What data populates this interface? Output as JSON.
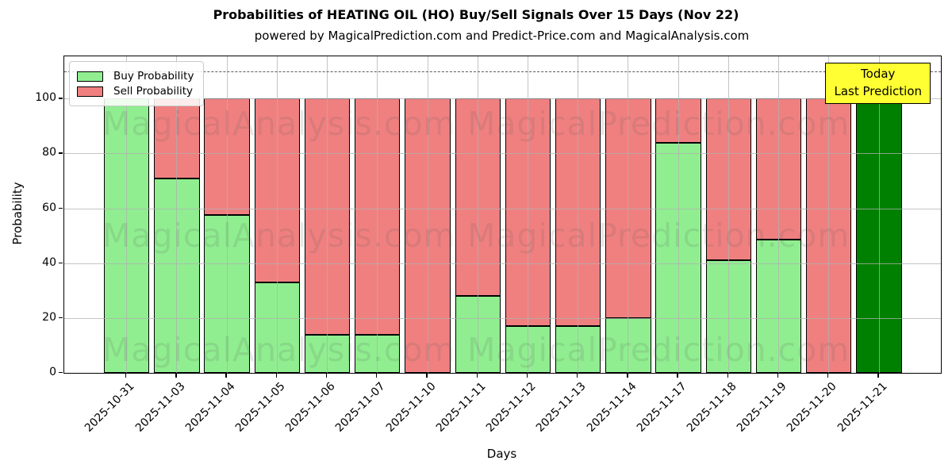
{
  "chart_data": {
    "type": "bar",
    "stacked": true,
    "title": "Probabilities of HEATING OIL (HO) Buy/Sell Signals Over 15 Days (Nov 22)",
    "subtitle": "powered by MagicalPrediction.com and Predict-Price.com and MagicalAnalysis.com",
    "xlabel": "Days",
    "ylabel": "Probability",
    "ylim": [
      0,
      115
    ],
    "yticks": [
      0,
      20,
      40,
      60,
      80,
      100
    ],
    "grid": true,
    "legend_position": "upper left",
    "dashed_line_y": 110,
    "categories": [
      "2025-10-31",
      "2025-11-03",
      "2025-11-04",
      "2025-11-05",
      "2025-11-06",
      "2025-11-07",
      "2025-11-10",
      "2025-11-11",
      "2025-11-12",
      "2025-11-13",
      "2025-11-14",
      "2025-11-17",
      "2025-11-18",
      "2025-11-19",
      "2025-11-20",
      "2025-11-21"
    ],
    "series": [
      {
        "name": "Buy Probability",
        "color": "#90ee90",
        "values": [
          100,
          71,
          57.5,
          33,
          14,
          14,
          0,
          28,
          17,
          17,
          20,
          84,
          41,
          48.5,
          0,
          100
        ]
      },
      {
        "name": "Sell Probability",
        "color": "#f08080",
        "values": [
          0,
          29,
          42.5,
          67,
          86,
          86,
          100,
          72,
          83,
          83,
          80,
          16,
          59,
          51.5,
          100,
          0
        ]
      }
    ],
    "bar_edge_color": "#000000",
    "highlight": {
      "index": 15,
      "color": "#008000",
      "box_color": "#ffff33",
      "label_lines": [
        "Today",
        "Last Prediction"
      ]
    },
    "watermarks": {
      "left": "MagicalAnalysis.com",
      "right": "MagicalPrediction.com"
    }
  }
}
